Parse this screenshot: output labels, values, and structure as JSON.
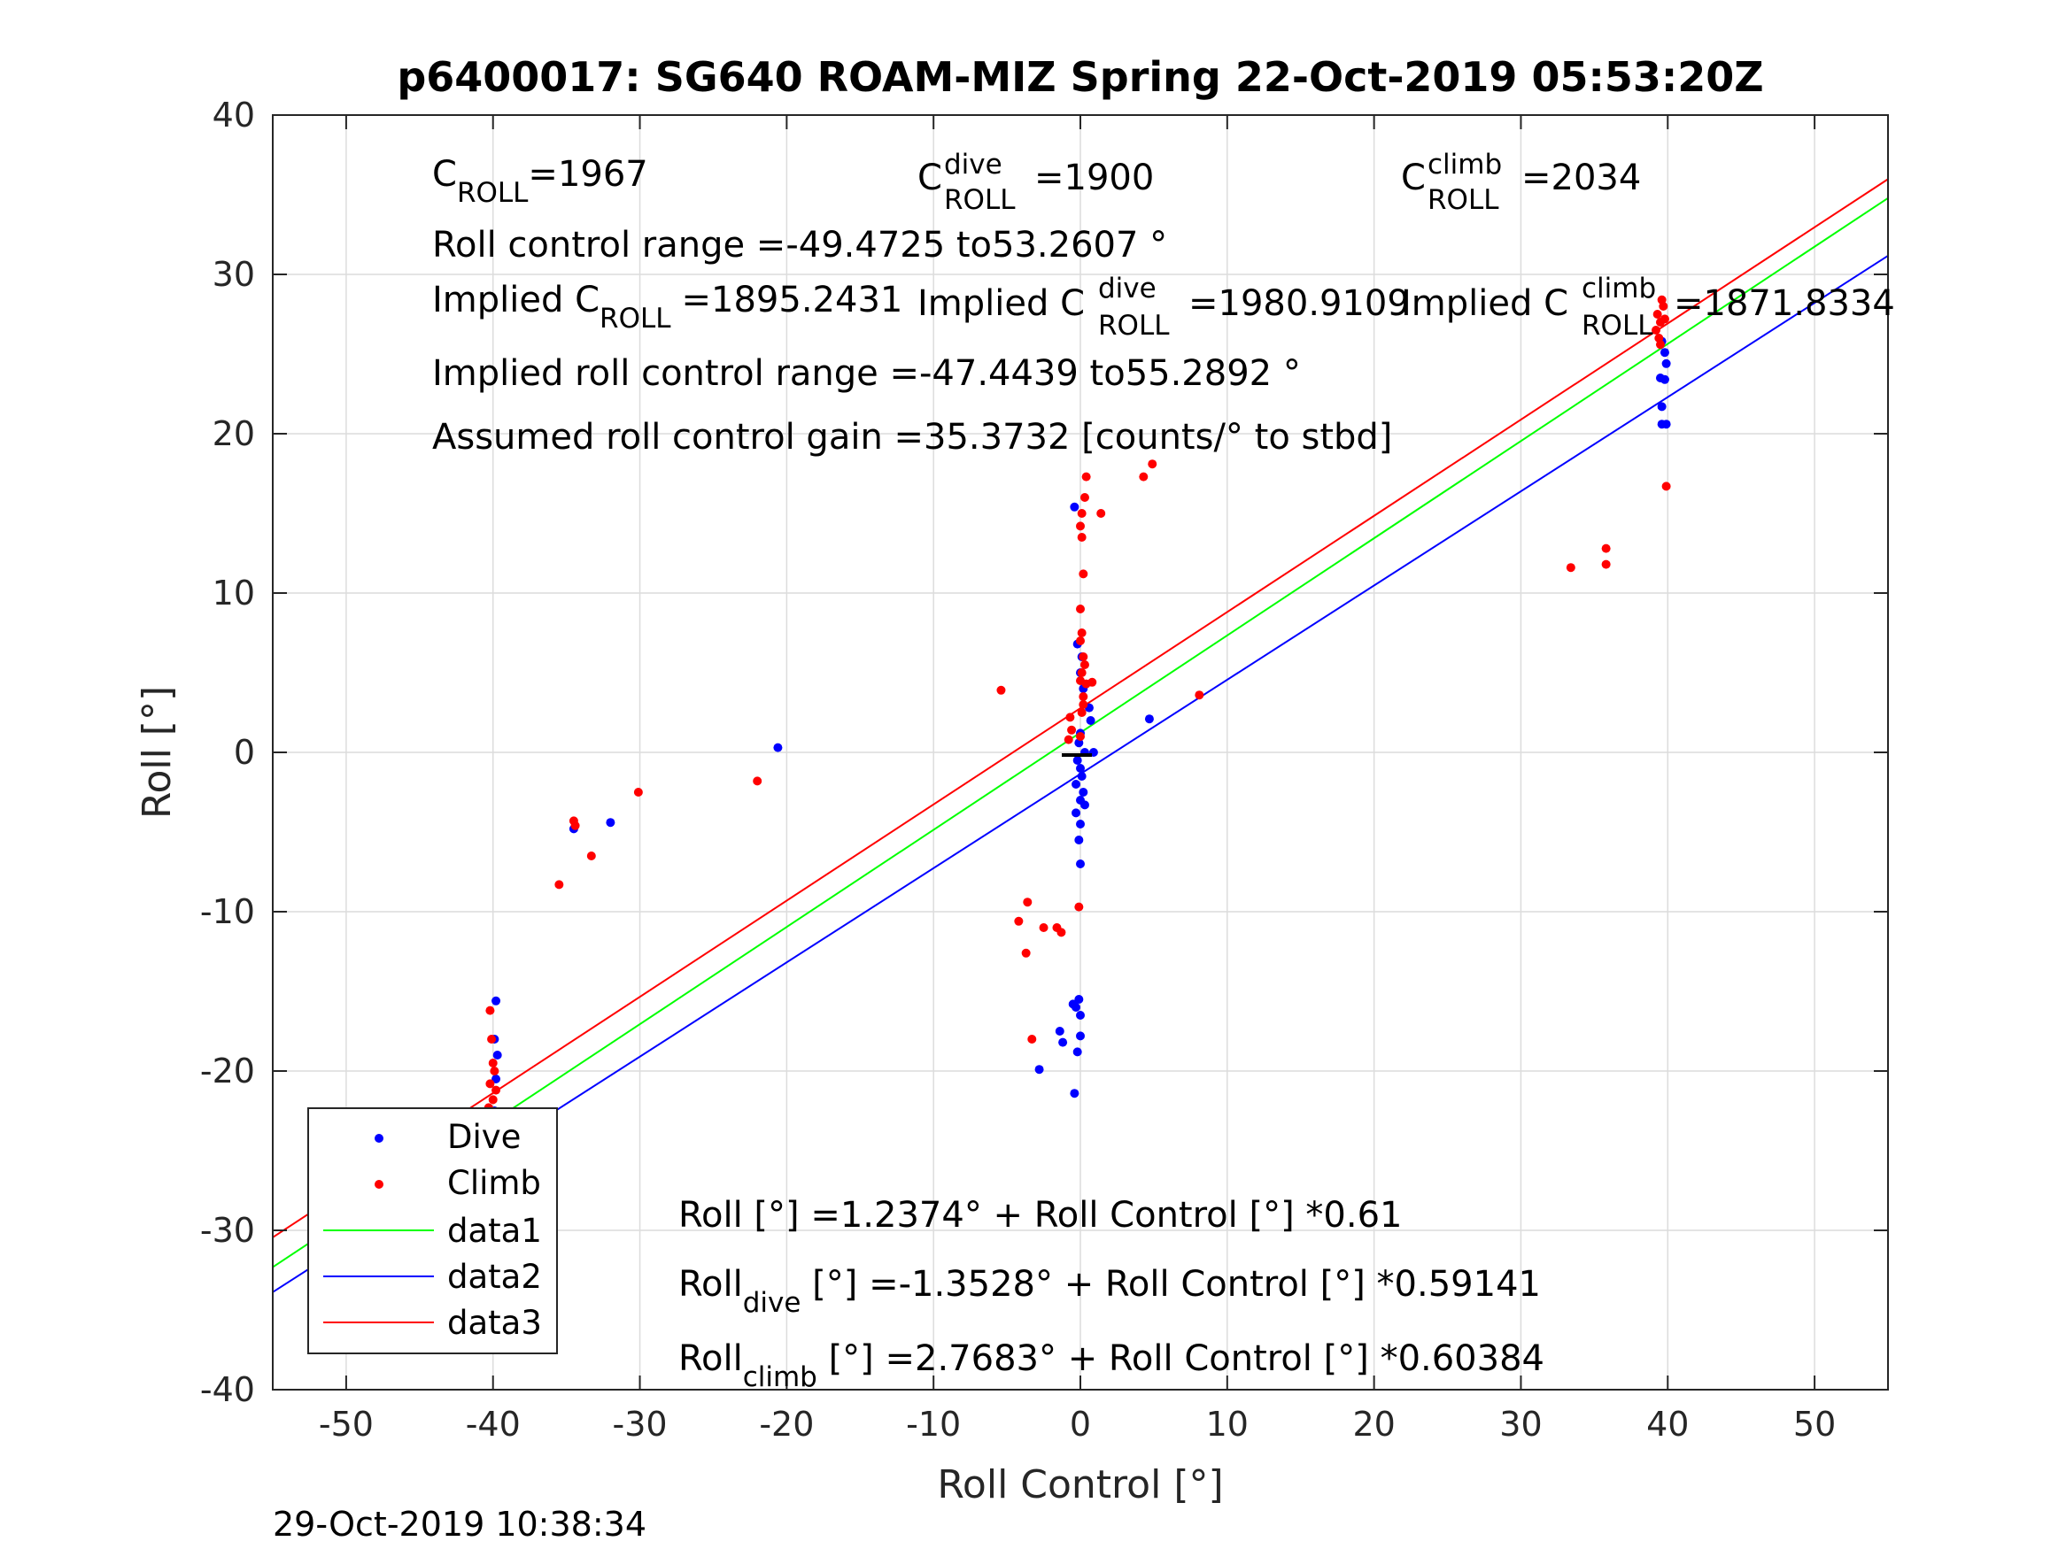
{
  "chart_data": {
    "type": "scatter",
    "title": "p6400017: SG640 ROAM-MIZ Spring 22-Oct-2019 05:53:20Z",
    "xlabel": "Roll Control [°]",
    "ylabel": "Roll [°]",
    "xlim": [
      -55,
      55
    ],
    "ylim": [
      -40,
      40
    ],
    "xticks": [
      -50,
      -40,
      -30,
      -20,
      -10,
      0,
      10,
      20,
      30,
      40,
      50
    ],
    "yticks": [
      -40,
      -30,
      -20,
      -10,
      0,
      10,
      20,
      30,
      40
    ],
    "xtick_labels": [
      "-50",
      "-40",
      "-30",
      "-20",
      "-10",
      "0",
      "10",
      "20",
      "30",
      "40",
      "50"
    ],
    "ytick_labels": [
      "-40",
      "-30",
      "-20",
      "-10",
      "0",
      "10",
      "20",
      "30",
      "40"
    ],
    "grid": true,
    "legend_position": "bottom-left",
    "legend": [
      "Dive",
      "Climb",
      "data1",
      "data2",
      "data3"
    ],
    "colors": {
      "dive": "#0000ff",
      "climb": "#ff0000",
      "data1": "#00ff00",
      "data2": "#0000ff",
      "data3": "#ff0000"
    },
    "series": [
      {
        "name": "Dive",
        "mode": "markers",
        "points": [
          [
            -47.8,
            -24.1
          ],
          [
            -39.8,
            -15.6
          ],
          [
            -39.9,
            -18.0
          ],
          [
            -39.7,
            -19.0
          ],
          [
            -39.8,
            -20.5
          ],
          [
            -39.9,
            -22.5
          ],
          [
            -40.0,
            -23.5
          ],
          [
            -39.8,
            -24.5
          ],
          [
            -39.9,
            -25.0
          ],
          [
            -40.1,
            -25.5
          ],
          [
            -39.9,
            -26.0
          ],
          [
            -39.8,
            -26.5
          ],
          [
            -40.0,
            -27.0
          ],
          [
            -39.7,
            -27.5
          ],
          [
            -40.2,
            -28.2
          ],
          [
            -39.8,
            -24.8
          ],
          [
            -39.6,
            -25.8
          ],
          [
            -34.5,
            -4.8
          ],
          [
            -32.0,
            -4.4
          ],
          [
            -20.6,
            0.3
          ],
          [
            -0.4,
            15.4
          ],
          [
            -0.2,
            6.8
          ],
          [
            0.1,
            6.0
          ],
          [
            0.0,
            5.0
          ],
          [
            0.2,
            4.0
          ],
          [
            0.6,
            2.8
          ],
          [
            0.7,
            2.0
          ],
          [
            0.0,
            1.2
          ],
          [
            -0.1,
            0.6
          ],
          [
            0.3,
            0.0
          ],
          [
            0.9,
            0.0
          ],
          [
            -0.2,
            -0.5
          ],
          [
            0.0,
            -1.0
          ],
          [
            0.1,
            -1.5
          ],
          [
            -0.3,
            -2.0
          ],
          [
            0.2,
            -2.5
          ],
          [
            0.0,
            -3.0
          ],
          [
            0.3,
            -3.3
          ],
          [
            -0.3,
            -3.8
          ],
          [
            0.0,
            -4.5
          ],
          [
            -0.1,
            -5.5
          ],
          [
            0.0,
            -7.0
          ],
          [
            4.7,
            2.1
          ],
          [
            -0.1,
            -15.5
          ],
          [
            -0.3,
            -16.0
          ],
          [
            0.0,
            -16.5
          ],
          [
            -0.5,
            -15.8
          ],
          [
            -1.4,
            -17.5
          ],
          [
            -1.2,
            -18.2
          ],
          [
            0.0,
            -17.8
          ],
          [
            -0.2,
            -18.8
          ],
          [
            -2.8,
            -19.9
          ],
          [
            -0.4,
            -21.4
          ],
          [
            39.6,
            25.8
          ],
          [
            39.8,
            25.1
          ],
          [
            39.9,
            24.4
          ],
          [
            39.5,
            23.5
          ],
          [
            39.8,
            23.4
          ],
          [
            39.6,
            21.7
          ],
          [
            39.6,
            20.6
          ],
          [
            39.9,
            20.6
          ]
        ]
      },
      {
        "name": "Climb",
        "mode": "markers",
        "points": [
          [
            -47.6,
            -27.0
          ],
          [
            -40.2,
            -16.2
          ],
          [
            -40.1,
            -18.0
          ],
          [
            -40.0,
            -19.5
          ],
          [
            -39.9,
            -20.0
          ],
          [
            -40.2,
            -20.8
          ],
          [
            -39.8,
            -21.2
          ],
          [
            -40.0,
            -21.8
          ],
          [
            -40.3,
            -22.3
          ],
          [
            -39.9,
            -22.8
          ],
          [
            -40.1,
            -23.3
          ],
          [
            -39.9,
            -23.8
          ],
          [
            -40.2,
            -25.5
          ],
          [
            -40.0,
            -26.0
          ],
          [
            -40.2,
            -29.0
          ],
          [
            -39.9,
            -31.3
          ],
          [
            -35.5,
            -8.3
          ],
          [
            -34.5,
            -4.3
          ],
          [
            -34.4,
            -4.6
          ],
          [
            -33.3,
            -6.5
          ],
          [
            -30.1,
            -2.5
          ],
          [
            -22.0,
            -1.8
          ],
          [
            -5.4,
            3.9
          ],
          [
            -0.7,
            2.2
          ],
          [
            -0.6,
            1.4
          ],
          [
            -0.8,
            0.8
          ],
          [
            0.0,
            1.0
          ],
          [
            0.1,
            2.5
          ],
          [
            0.2,
            3.5
          ],
          [
            0.0,
            4.5
          ],
          [
            0.1,
            5.0
          ],
          [
            0.2,
            6.0
          ],
          [
            0.0,
            7.0
          ],
          [
            0.1,
            7.5
          ],
          [
            0.3,
            5.5
          ],
          [
            0.2,
            3.0
          ],
          [
            0.4,
            4.3
          ],
          [
            0.8,
            4.4
          ],
          [
            0.0,
            9.0
          ],
          [
            0.2,
            11.2
          ],
          [
            0.1,
            13.5
          ],
          [
            0.0,
            14.2
          ],
          [
            0.1,
            15.0
          ],
          [
            0.3,
            16.0
          ],
          [
            0.4,
            17.3
          ],
          [
            1.4,
            15.0
          ],
          [
            4.3,
            17.3
          ],
          [
            4.9,
            18.1
          ],
          [
            8.1,
            3.6
          ],
          [
            -3.6,
            -9.4
          ],
          [
            -4.2,
            -10.6
          ],
          [
            -3.7,
            -12.6
          ],
          [
            -2.5,
            -11.0
          ],
          [
            -1.6,
            -11.0
          ],
          [
            -1.3,
            -11.3
          ],
          [
            -3.3,
            -18.0
          ],
          [
            -0.1,
            -9.7
          ],
          [
            39.2,
            26.5
          ],
          [
            39.5,
            27.0
          ],
          [
            39.3,
            27.5
          ],
          [
            39.7,
            28.0
          ],
          [
            39.6,
            28.4
          ],
          [
            39.4,
            26.0
          ],
          [
            39.8,
            27.2
          ],
          [
            39.5,
            25.6
          ],
          [
            39.9,
            16.7
          ],
          [
            35.8,
            12.8
          ],
          [
            35.8,
            11.8
          ],
          [
            33.4,
            11.6
          ]
        ]
      },
      {
        "name": "data1",
        "mode": "line",
        "x": [
          -55,
          55
        ],
        "y": [
          -32.31,
          34.79
        ]
      },
      {
        "name": "data2",
        "mode": "line",
        "x": [
          -55,
          55
        ],
        "y": [
          -33.88,
          31.17
        ]
      },
      {
        "name": "data3",
        "mode": "line",
        "x": [
          -55,
          55
        ],
        "y": [
          -30.44,
          35.98
        ]
      }
    ]
  },
  "annotations": {
    "croll": {
      "base": "C",
      "sup": "",
      "sub": "ROLL",
      "value": "=1967"
    },
    "cdive": {
      "base": "C",
      "sup": "dive",
      "sub": "ROLL",
      "value": "=1900"
    },
    "cclimb": {
      "base": "C",
      "sup": "climb",
      "sub": "ROLL",
      "value": "=2034"
    },
    "roll_range": "Roll control range =-49.4725 to53.2607 °",
    "implied_croll": {
      "prefix": "Implied C",
      "sub": "ROLL",
      "value": "=1895.2431"
    },
    "implied_cdive": {
      "prefix": "Implied C",
      "sup": "dive",
      "sub": "ROLL",
      "value": "=1980.9109"
    },
    "implied_cclimb": {
      "prefix": "Implied C",
      "sup": "climb",
      "sub": "ROLL",
      "value": "=1871.8334"
    },
    "implied_range": "Implied roll control range =-47.4439 to55.2892 °",
    "gain": "Assumed roll control gain =35.3732 [counts/° to stbd]",
    "fit_all": "Roll [°] =1.2374° + Roll Control [°] *0.61",
    "fit_dive": {
      "prefix": "Roll",
      "sub": "dive",
      "rest": " [°] =-1.3528° + Roll Control [°] *0.59141"
    },
    "fit_climb": {
      "prefix": "Roll",
      "sub": "climb",
      "rest": " [°] =2.7683° + Roll Control [°] *0.60384"
    }
  },
  "timestamp": "29-Oct-2019 10:38:34"
}
